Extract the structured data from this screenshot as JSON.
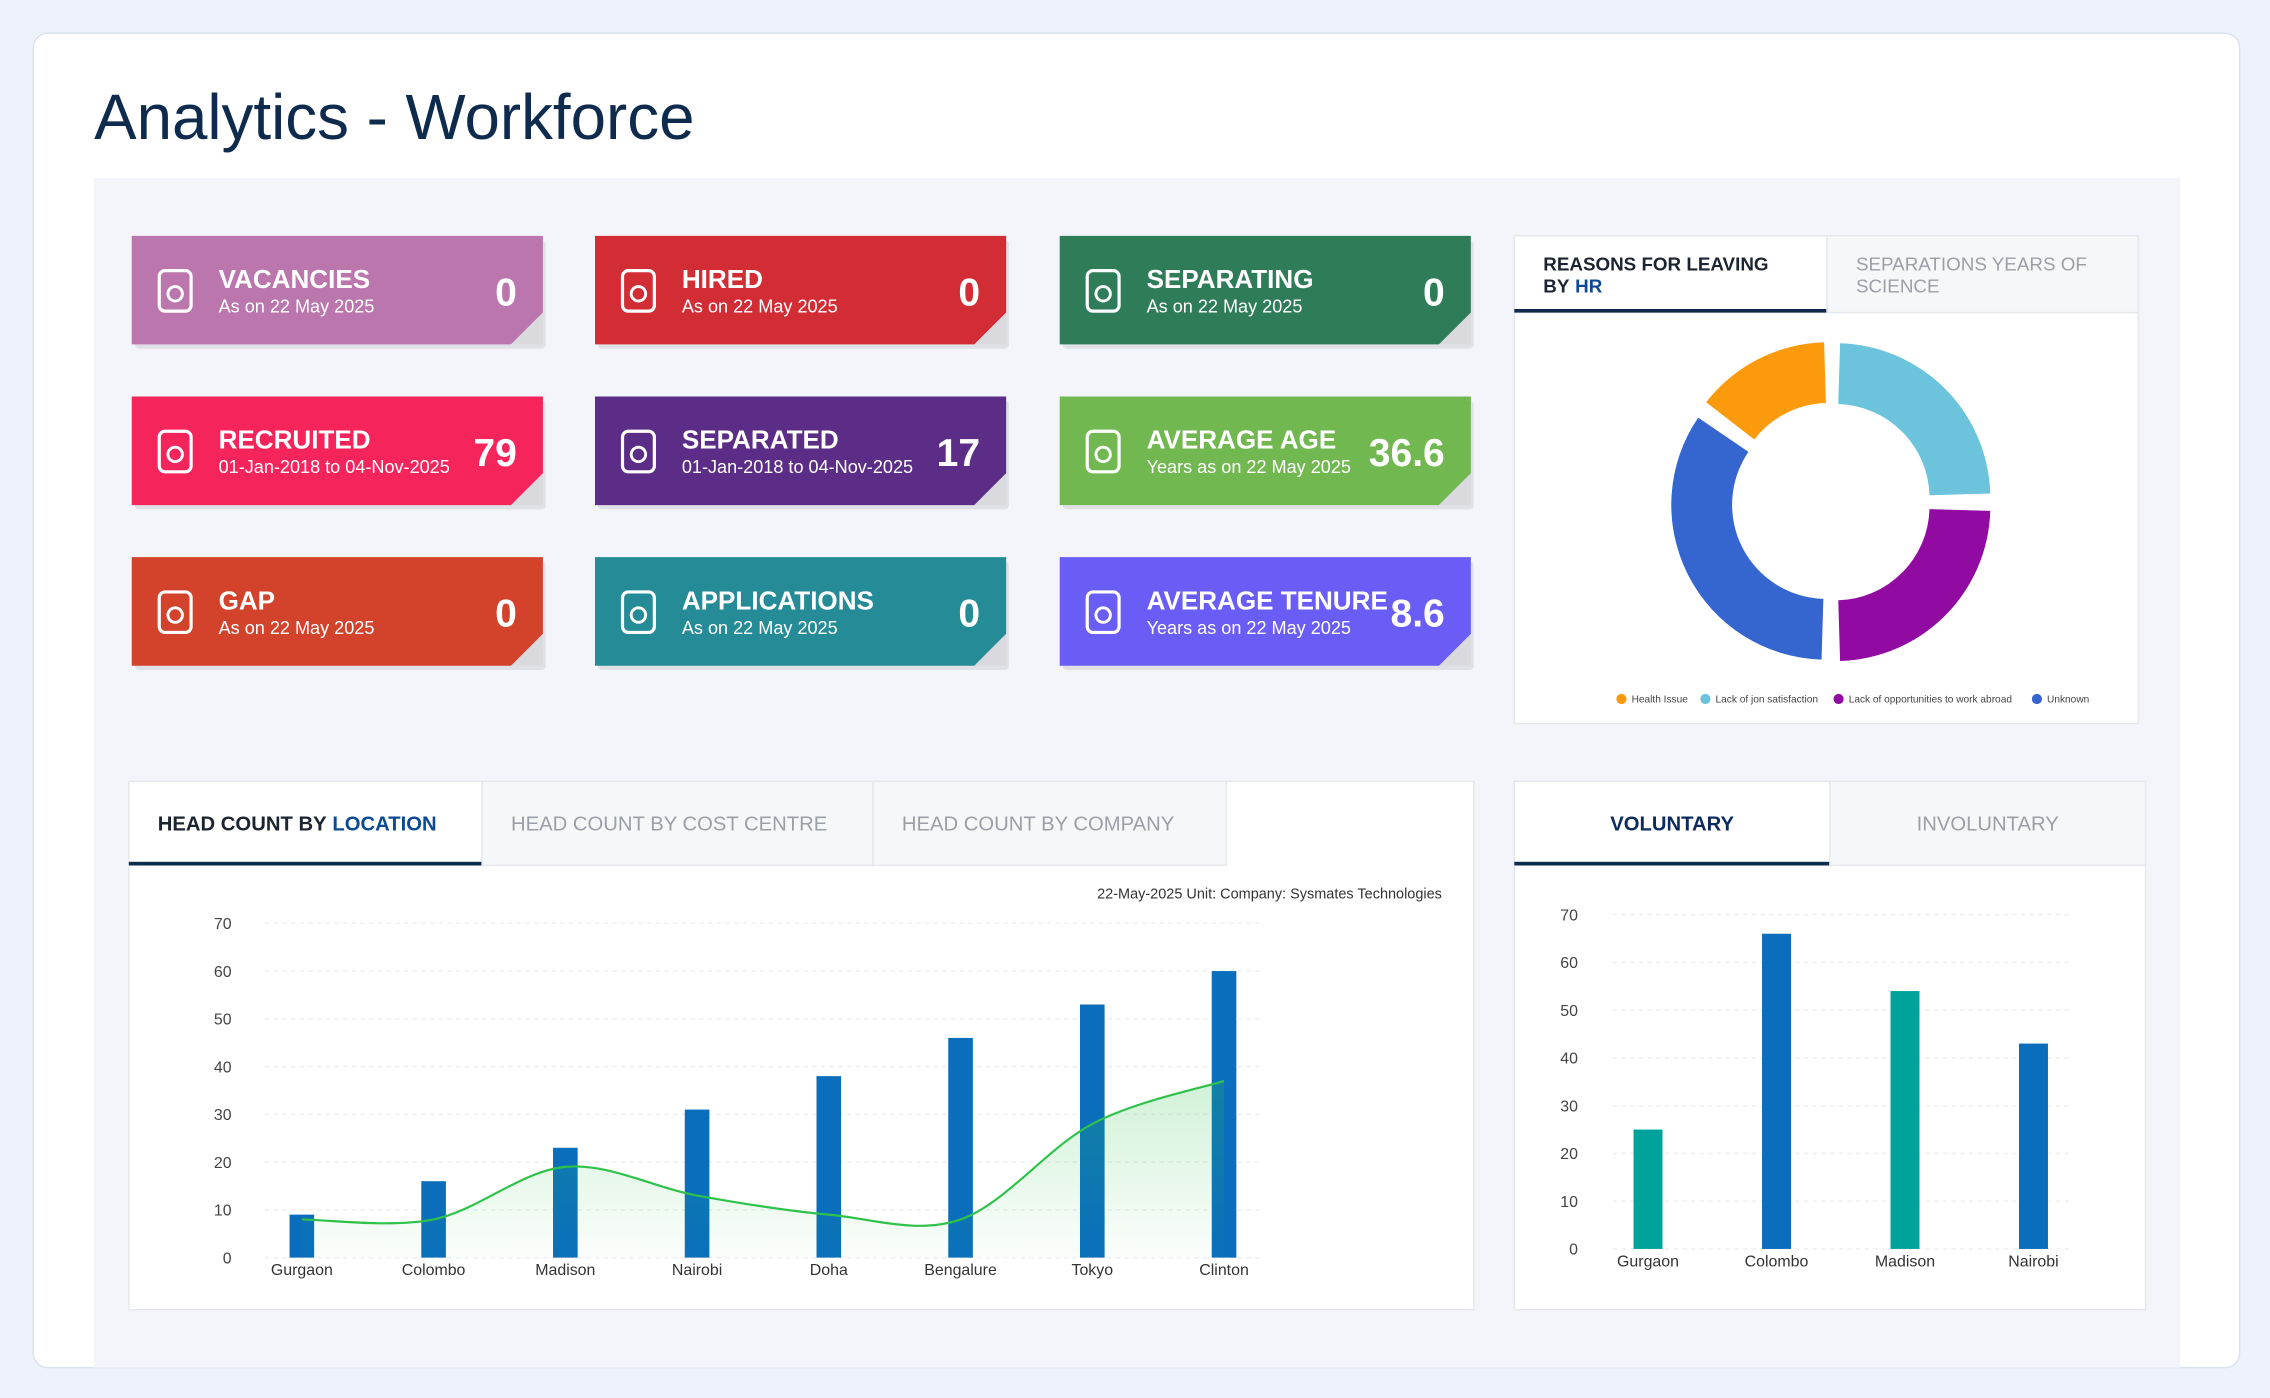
{
  "title": "Analytics - Workforce",
  "cards": [
    {
      "title": "VACANCIES",
      "subtitle": "As on 22 May 2025",
      "value": 0,
      "color": "#bb76ad"
    },
    {
      "title": "HIRED",
      "subtitle": "As on 22 May 2025",
      "value": 0,
      "color": "#d22d35"
    },
    {
      "title": "SEPARATING",
      "subtitle": "As on 22 May 2025",
      "value": 0,
      "color": "#2f7d58"
    },
    {
      "title": "RECRUITED",
      "subtitle": "01-Jan-2018 to 04-Nov-2025",
      "value": 79,
      "color": "#f5245b"
    },
    {
      "title": "SEPARATED",
      "subtitle": "01-Jan-2018 to 04-Nov-2025",
      "value": 17,
      "color": "#5c2d87"
    },
    {
      "title": "AVERAGE AGE",
      "subtitle": "Years as on 22 May 2025",
      "value": 36.6,
      "color": "#72b851"
    },
    {
      "title": "GAP",
      "subtitle": "As on 22 May 2025",
      "value": 0,
      "color": "#d3422b"
    },
    {
      "title": "APPLICATIONS",
      "subtitle": "As on 22 May 2025",
      "value": 0,
      "color": "#248b97"
    },
    {
      "title": "AVERAGE TENURE",
      "subtitle": "Years as on 22 May 2025",
      "value": 8.6,
      "color": "#6a5df6"
    }
  ],
  "chart_data": [
    {
      "type": "donut",
      "tabs": [
        [
          [
            "REASONS FOR LEAVING"
          ],
          [
            "BY",
            "HR"
          ]
        ],
        [
          [
            "SEPARATIONS YEARS OF"
          ],
          [
            "SCIENCE"
          ]
        ]
      ],
      "categories": [
        "Health Issue",
        "Lack of jon satisfaction",
        "Lack of opportunities to work abroad",
        "Unknown"
      ],
      "values": [
        15,
        25,
        25,
        35
      ],
      "colors": [
        "#fb9a0c",
        "#6cc3dc",
        "#910ba3",
        "#3565cf"
      ]
    },
    {
      "type": "bar",
      "tabs": [
        [
          [
            "HEAD COUNT BY",
            "LOCATION"
          ]
        ],
        [
          [
            "HEAD COUNT BY COST CENTRE"
          ]
        ],
        [
          [
            "HEAD COUNT BY COMPANY"
          ]
        ]
      ],
      "note": "22-May-2025 Unit: Company: Sysmates Technologies",
      "categories": [
        "Gurgaon",
        "Colombo",
        "Madison",
        "Nairobi",
        "Doha",
        "Bengalure",
        "Tokyo",
        "Clinton"
      ],
      "series": [
        {
          "type": "bar",
          "color": "#0a6ebd",
          "values": [
            9,
            16,
            23,
            31,
            38,
            46,
            53,
            60
          ]
        },
        {
          "type": "line",
          "color": "#2fc24a",
          "values": [
            8,
            8,
            19,
            13,
            9,
            8,
            28,
            37
          ]
        }
      ],
      "ylim": [
        0,
        70
      ],
      "yticks": [
        0,
        10,
        20,
        30,
        40,
        50,
        60,
        70
      ],
      "grid": true
    },
    {
      "type": "bar",
      "tabs": [
        [
          [
            "VOLUNTARY"
          ]
        ],
        [
          [
            "INVOLUNTARY"
          ]
        ]
      ],
      "categories": [
        "Gurgaon",
        "Colombo",
        "Madison",
        "Nairobi"
      ],
      "series": [
        {
          "type": "bar",
          "colors": [
            "#00a39c",
            "#0a6ebd",
            "#00a39c",
            "#0a6ebd"
          ],
          "values": [
            25,
            66,
            54,
            43
          ]
        }
      ],
      "ylim": [
        0,
        70
      ],
      "yticks": [
        0,
        10,
        20,
        30,
        40,
        50,
        60,
        70
      ],
      "grid": true
    }
  ]
}
